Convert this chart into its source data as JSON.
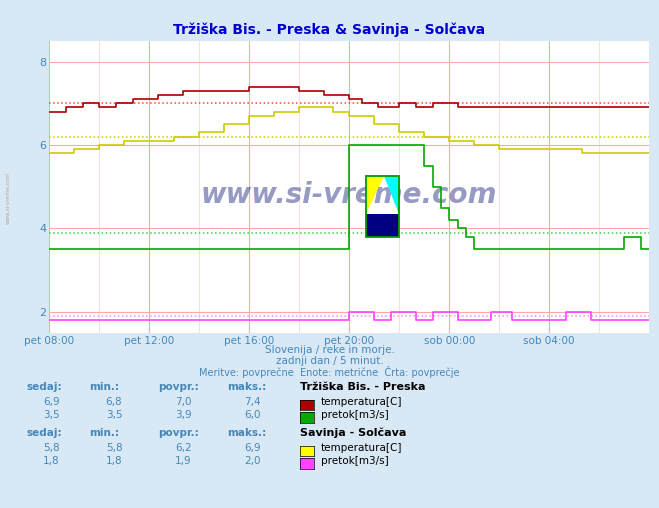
{
  "title": "Tržiška Bis. - Preska & Savinja - Solčava",
  "subtitle1": "Slovenija / reke in morje.",
  "subtitle2": "zadnji dan / 5 minut.",
  "subtitle3": "Meritve: povprečne  Enote: metrične  Črta: povprečje",
  "bg_color": "#d8e8f4",
  "plot_bg_color": "#ffffff",
  "grid_color": "#ffaaaa",
  "xlim": [
    0,
    288
  ],
  "ylim": [
    1.5,
    8.5
  ],
  "ytick_vals": [
    2,
    4,
    6,
    8
  ],
  "ytick_labels": [
    "2",
    "4",
    "6",
    "8"
  ],
  "xtick_positions": [
    0,
    48,
    96,
    144,
    192,
    240
  ],
  "xtick_labels": [
    "pet 08:00",
    "pet 12:00",
    "pet 16:00",
    "pet 20:00",
    "sob 00:00",
    "sob 04:00"
  ],
  "colors": {
    "trziska_temp": "#aa0000",
    "trziska_pretok": "#00aa00",
    "savinja_temp": "#cccc00",
    "savinja_pretok": "#ff44ff",
    "avg_trziska_temp": "#ff4444",
    "avg_trziska_pretok": "#44cc44",
    "avg_savinja_temp": "#cccc00",
    "avg_savinja_pretok": "#ff88ff",
    "text_color": "#4488bb",
    "axis_arrow": "#aa0000",
    "watermark": "#1a237e",
    "left_text": "#aaaaaa"
  },
  "stats": {
    "trziska_temp": {
      "sedaj": 6.9,
      "min": 6.8,
      "povpr": 7.0,
      "maks": 7.4
    },
    "trziska_pretok": {
      "sedaj": 3.5,
      "min": 3.5,
      "povpr": 3.9,
      "maks": 6.0
    },
    "savinja_temp": {
      "sedaj": 5.8,
      "min": 5.8,
      "povpr": 6.2,
      "maks": 6.9
    },
    "savinja_pretok": {
      "sedaj": 1.8,
      "min": 1.8,
      "povpr": 1.9,
      "maks": 2.0
    }
  }
}
